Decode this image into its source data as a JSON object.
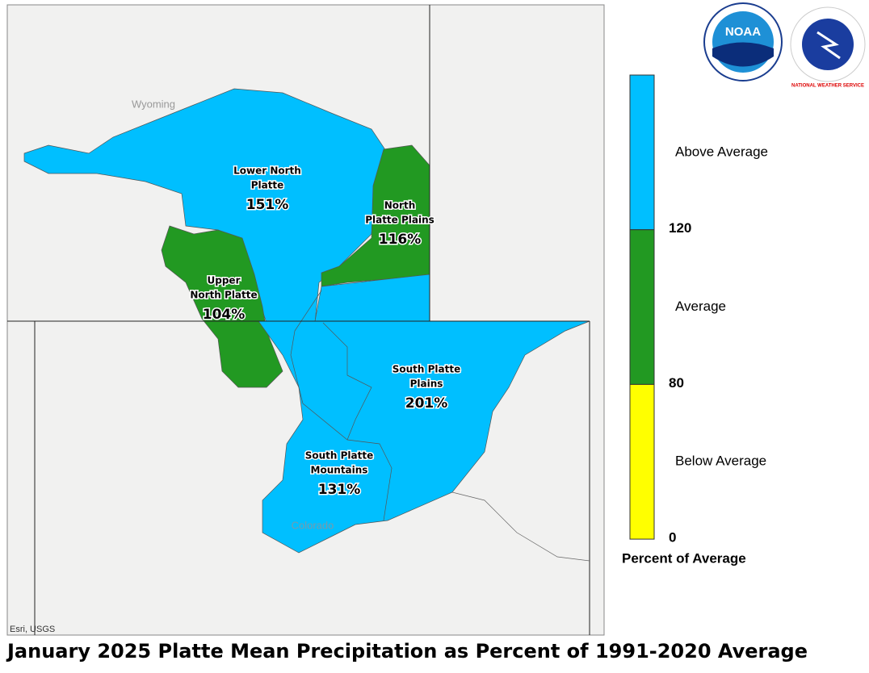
{
  "title": "January 2025 Platte Mean Precipitation as Percent of 1991-2020 Average",
  "map": {
    "states": [
      "Wyoming",
      "Colorado"
    ],
    "attribution": "Esri, USGS",
    "basins": [
      {
        "name": [
          "Lower North",
          "Platte"
        ],
        "value": "151%"
      },
      {
        "name": [
          "North",
          "Platte Plains"
        ],
        "value": "116%"
      },
      {
        "name": [
          "Upper",
          "North Platte"
        ],
        "value": "104%"
      },
      {
        "name": [
          "South Platte",
          "Plains"
        ],
        "value": "201%"
      },
      {
        "name": [
          "South Platte",
          "Mountains"
        ],
        "value": "131%"
      }
    ]
  },
  "legend": {
    "title": "Percent of Average",
    "classes": [
      {
        "label": "Above Average",
        "color": "#00bfff"
      },
      {
        "label": "Average",
        "color": "#229922"
      },
      {
        "label": "Below Average",
        "color": "#ffff00"
      }
    ],
    "breaks": [
      "120",
      "80",
      "0"
    ]
  },
  "logos": [
    "NOAA",
    "NATIONAL WEATHER SERVICE"
  ]
}
